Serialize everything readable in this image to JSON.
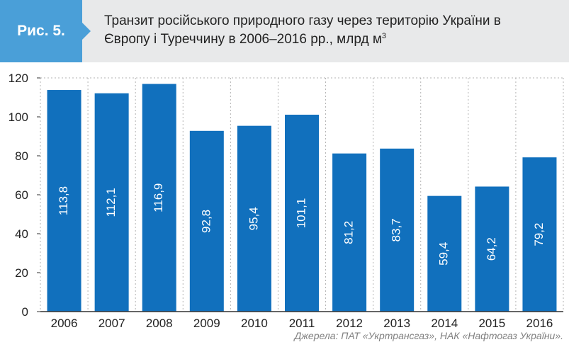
{
  "header": {
    "badge": "Рис. 5.",
    "title_line1": "Транзит російського природного газу через територію України в",
    "title_line2": "Європу і Туреччину в 2006–2016 рр., млрд м",
    "title_superscript": "3"
  },
  "source": "Джерела: ПАТ «Укртрансгаз», НАК «Нафтогаз України».",
  "colors": {
    "bar": "#1170bd",
    "badge": "#4a9fd8",
    "header_bg": "#e8e9ea",
    "grid": "#b3b3b3"
  },
  "chart_data": {
    "type": "bar",
    "title": "Транзит російського природного газу через територію України в Європу і Туреччину в 2006–2016 рр., млрд м3",
    "categories": [
      "2006",
      "2007",
      "2008",
      "2009",
      "2010",
      "2011",
      "2012",
      "2013",
      "2014",
      "2015",
      "2016"
    ],
    "values": [
      113.8,
      112.1,
      116.9,
      92.8,
      95.4,
      101.1,
      81.2,
      83.7,
      59.4,
      64.2,
      79.2
    ],
    "value_labels": [
      "113,8",
      "112,1",
      "116,9",
      "92,8",
      "95,4",
      "101,1",
      "81,2",
      "83,7",
      "59,4",
      "64,2",
      "79,2"
    ],
    "yticks": [
      0,
      20,
      40,
      60,
      80,
      100,
      120
    ],
    "ylim": [
      0,
      120
    ],
    "grid": "vertical dotted",
    "xlabel": "",
    "ylabel": ""
  }
}
